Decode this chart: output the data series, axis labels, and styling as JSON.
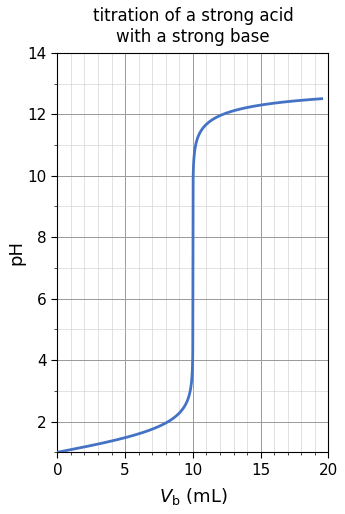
{
  "title": "titration of a strong acid\nwith a strong base",
  "ylabel": "pH",
  "xlim": [
    0,
    20
  ],
  "ylim": [
    1,
    14
  ],
  "xticks": [
    0,
    5,
    10,
    15,
    20
  ],
  "yticks": [
    2,
    4,
    6,
    8,
    10,
    12,
    14
  ],
  "minor_x_spacing": 1,
  "minor_y_spacing": 1,
  "line_color": "#4472C4",
  "line_width": 2.0,
  "grid_major_color": "#999999",
  "grid_minor_color": "#CCCCCC",
  "grid_major_lw": 0.7,
  "grid_minor_lw": 0.4,
  "background_color": "#FFFFFF",
  "fig_bg_color": "#FFFFFF",
  "Va": 10.0,
  "Ca": 0.1,
  "Cb": 0.1,
  "title_fontsize": 12,
  "axis_label_fontsize": 13,
  "tick_fontsize": 11
}
